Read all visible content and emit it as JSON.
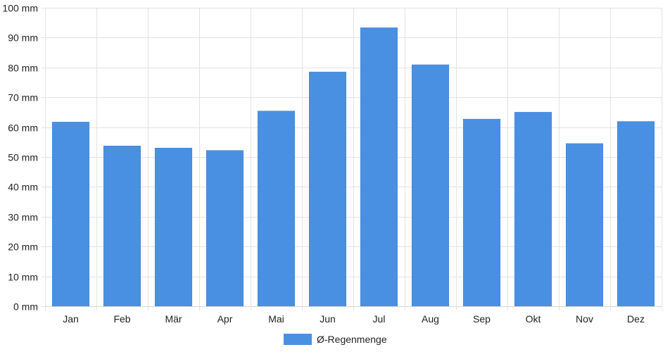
{
  "chart_data": {
    "type": "bar",
    "categories": [
      "Jan",
      "Feb",
      "Mär",
      "Apr",
      "Mai",
      "Jun",
      "Jul",
      "Aug",
      "Sep",
      "Okt",
      "Nov",
      "Dez"
    ],
    "series": [
      {
        "name": "Ø-Regenmenge",
        "values": [
          61.7,
          53.7,
          53.0,
          52.2,
          65.4,
          78.5,
          93.3,
          80.9,
          62.7,
          65.0,
          54.5,
          61.9
        ],
        "color": "#4a90e2"
      }
    ],
    "y_ticks": [
      "0 mm",
      "10 mm",
      "20 mm",
      "30 mm",
      "40 mm",
      "50 mm",
      "60 mm",
      "70 mm",
      "80 mm",
      "90 mm",
      "100 mm"
    ],
    "ylim": [
      0,
      100
    ],
    "y_unit": "mm",
    "grid": true,
    "legend_position": "bottom"
  }
}
